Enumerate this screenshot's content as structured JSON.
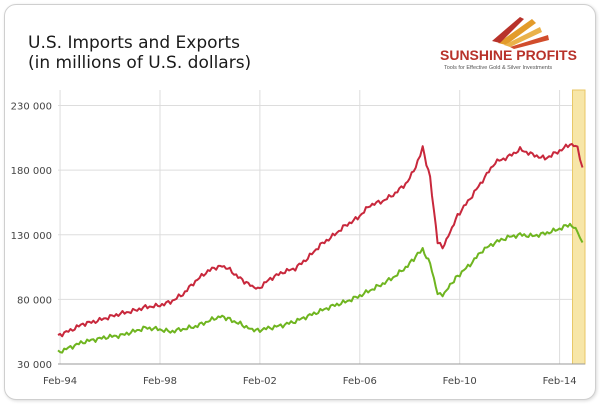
{
  "chart_title_line1": "U.S. Imports and Exports",
  "chart_title_line2": "(in millions of U.S. dollars)",
  "logo": {
    "name": "SUNSHINE PROFITS",
    "tagline": "Tools for Effective Gold & Silver Investments"
  },
  "colors": {
    "imports": "#c8283c",
    "exports": "#6fb520",
    "highlight": "#f7e6a8",
    "grid": "#dddddd"
  },
  "chart_data": {
    "type": "line",
    "title": "",
    "xlabel": "",
    "ylabel": "",
    "x_ticks": [
      "Feb-94",
      "Feb-98",
      "Feb-02",
      "Feb-06",
      "Feb-10",
      "Feb-14"
    ],
    "y_ticks": [
      "30 000",
      "80 000",
      "130 000",
      "180 000",
      "230 000"
    ],
    "xlim": [
      1994.0,
      2015.1
    ],
    "ylim": [
      30000,
      242000
    ],
    "grid": true,
    "highlight_range": [
      2014.6,
      2015.1
    ],
    "series": [
      {
        "key": "imports",
        "x": [
          1994.0,
          1994.5,
          1995.0,
          1995.5,
          1996.0,
          1996.5,
          1997.0,
          1997.5,
          1998.0,
          1998.5,
          1999.0,
          1999.5,
          2000.0,
          2000.5,
          2000.8,
          2001.3,
          2001.7,
          2002.0,
          2002.5,
          2003.0,
          2003.5,
          2004.0,
          2004.5,
          2005.0,
          2005.5,
          2006.0,
          2006.5,
          2007.0,
          2007.5,
          2008.0,
          2008.4,
          2008.6,
          2008.9,
          2009.2,
          2009.4,
          2009.7,
          2010.0,
          2010.5,
          2011.0,
          2011.5,
          2012.0,
          2012.5,
          2013.0,
          2013.5,
          2014.0,
          2014.5,
          2014.8,
          2015.0
        ],
        "y": [
          52000,
          56000,
          61000,
          63000,
          66000,
          69000,
          71000,
          74000,
          75000,
          78000,
          84000,
          94000,
          102000,
          106000,
          104000,
          96000,
          91000,
          88000,
          96000,
          101000,
          104000,
          112000,
          122000,
          129000,
          137000,
          143000,
          153000,
          156000,
          162000,
          171000,
          186000,
          197000,
          174000,
          124000,
          120000,
          132000,
          145000,
          158000,
          172000,
          186000,
          190000,
          196000,
          192000,
          189000,
          194000,
          200000,
          198000,
          182000
        ]
      },
      {
        "key": "exports",
        "x": [
          1994.0,
          1994.5,
          1995.0,
          1995.5,
          1996.0,
          1996.5,
          1997.0,
          1997.5,
          1998.0,
          1998.5,
          1999.0,
          1999.5,
          2000.0,
          2000.5,
          2000.8,
          2001.3,
          2001.7,
          2002.0,
          2002.5,
          2003.0,
          2003.5,
          2004.0,
          2004.5,
          2005.0,
          2005.5,
          2006.0,
          2006.5,
          2007.0,
          2007.5,
          2008.0,
          2008.4,
          2008.6,
          2008.9,
          2009.2,
          2009.4,
          2009.7,
          2010.0,
          2010.5,
          2011.0,
          2011.5,
          2012.0,
          2012.5,
          2013.0,
          2013.5,
          2014.0,
          2014.5,
          2014.8,
          2015.0
        ],
        "y": [
          39000,
          43000,
          47000,
          49000,
          51000,
          52000,
          55000,
          58000,
          57000,
          55000,
          57000,
          59000,
          63000,
          67000,
          65000,
          61000,
          57000,
          56000,
          58000,
          60000,
          63000,
          67000,
          71000,
          75000,
          78000,
          82000,
          87000,
          92000,
          98000,
          106000,
          115000,
          118000,
          108000,
          84000,
          83000,
          91000,
          98000,
          107000,
          118000,
          124000,
          128000,
          130000,
          129000,
          131000,
          134000,
          138000,
          133000,
          124000
        ]
      }
    ]
  }
}
